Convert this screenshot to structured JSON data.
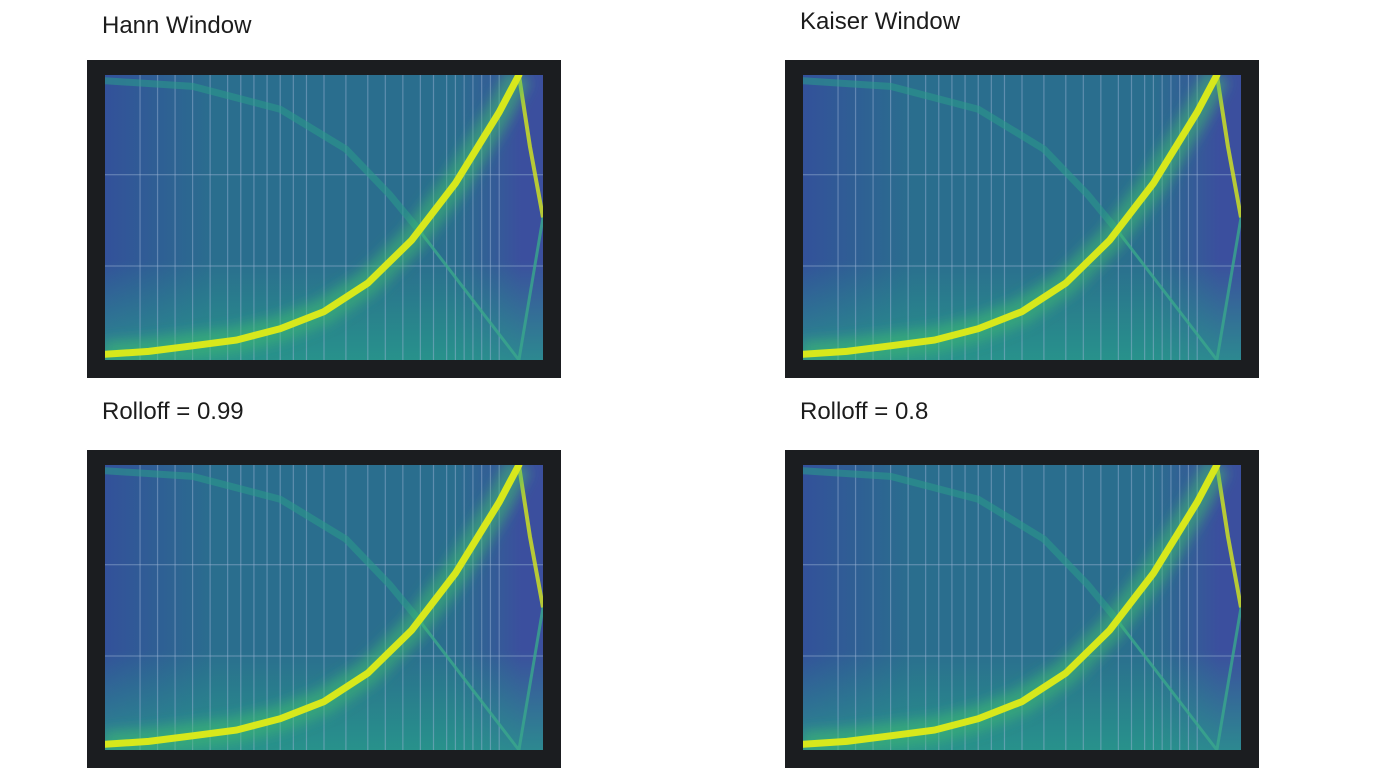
{
  "figure": {
    "panels": [
      {
        "id": "p1",
        "title": "Hann Window"
      },
      {
        "id": "p2",
        "title": "Kaiser Window"
      },
      {
        "id": "p3",
        "title": "Rolloff = 0.99"
      },
      {
        "id": "p4",
        "title": "Rolloff = 0.8"
      }
    ]
  },
  "colors": {
    "frame": "#1b1d20",
    "background": "#2a6e8e",
    "background_left": "#33519a",
    "grid": "#9fb6d6",
    "ridge": "#d7e81c",
    "ridge_glow": "#3fbf6e",
    "sweep_ghost": "#2a9d8a",
    "alias": "#39a88c",
    "right_edge": "#3b4f9e"
  },
  "chart_data": [
    {
      "type": "heatmap",
      "title": "Hann Window",
      "colormap": "viridis",
      "grid": true,
      "xlim": [
        0,
        1
      ],
      "ylim": [
        0,
        1
      ],
      "sweep_curve": {
        "x": [
          0,
          0.1,
          0.2,
          0.3,
          0.4,
          0.5,
          0.6,
          0.7,
          0.8,
          0.9,
          0.945
        ],
        "y": [
          0.02,
          0.03,
          0.05,
          0.07,
          0.11,
          0.17,
          0.27,
          0.42,
          0.62,
          0.87,
          1.0
        ]
      },
      "alias_curve": {
        "x": [
          0.945,
          0.97,
          1.0
        ],
        "y": [
          1.0,
          0.75,
          0.5
        ]
      },
      "ghost_curve": {
        "x": [
          0,
          0.2,
          0.4,
          0.55,
          0.65,
          0.72
        ],
        "y": [
          0.98,
          0.96,
          0.88,
          0.74,
          0.58,
          0.45
        ]
      }
    },
    {
      "type": "heatmap",
      "title": "Kaiser Window",
      "colormap": "viridis",
      "grid": true,
      "xlim": [
        0,
        1
      ],
      "ylim": [
        0,
        1
      ],
      "sweep_curve": {
        "x": [
          0,
          0.1,
          0.2,
          0.3,
          0.4,
          0.5,
          0.6,
          0.7,
          0.8,
          0.9,
          0.945
        ],
        "y": [
          0.02,
          0.03,
          0.05,
          0.07,
          0.11,
          0.17,
          0.27,
          0.42,
          0.62,
          0.87,
          1.0
        ]
      },
      "alias_curve": {
        "x": [
          0.945,
          0.97,
          1.0
        ],
        "y": [
          1.0,
          0.75,
          0.5
        ]
      },
      "ghost_curve": {
        "x": [
          0,
          0.2,
          0.4,
          0.55,
          0.65,
          0.72
        ],
        "y": [
          0.98,
          0.96,
          0.88,
          0.74,
          0.58,
          0.45
        ]
      }
    },
    {
      "type": "heatmap",
      "title": "Rolloff = 0.99",
      "colormap": "viridis",
      "grid": true,
      "xlim": [
        0,
        1
      ],
      "ylim": [
        0,
        1
      ],
      "sweep_curve": {
        "x": [
          0,
          0.1,
          0.2,
          0.3,
          0.4,
          0.5,
          0.6,
          0.7,
          0.8,
          0.9,
          0.945
        ],
        "y": [
          0.02,
          0.03,
          0.05,
          0.07,
          0.11,
          0.17,
          0.27,
          0.42,
          0.62,
          0.87,
          1.0
        ]
      },
      "alias_curve": {
        "x": [
          0.945,
          0.97,
          1.0
        ],
        "y": [
          1.0,
          0.75,
          0.5
        ]
      },
      "ghost_curve": {
        "x": [
          0,
          0.2,
          0.4,
          0.55,
          0.65,
          0.72
        ],
        "y": [
          0.98,
          0.96,
          0.88,
          0.74,
          0.58,
          0.45
        ]
      }
    },
    {
      "type": "heatmap",
      "title": "Rolloff = 0.8",
      "colormap": "viridis",
      "grid": true,
      "xlim": [
        0,
        1
      ],
      "ylim": [
        0,
        1
      ],
      "sweep_curve": {
        "x": [
          0,
          0.1,
          0.2,
          0.3,
          0.4,
          0.5,
          0.6,
          0.7,
          0.8,
          0.9,
          0.945
        ],
        "y": [
          0.02,
          0.03,
          0.05,
          0.07,
          0.11,
          0.17,
          0.27,
          0.42,
          0.62,
          0.87,
          1.0
        ]
      },
      "alias_curve": {
        "x": [
          0.945,
          0.97,
          1.0
        ],
        "y": [
          1.0,
          0.75,
          0.5
        ]
      },
      "ghost_curve": {
        "x": [
          0,
          0.2,
          0.4,
          0.55,
          0.65,
          0.72
        ],
        "y": [
          0.98,
          0.96,
          0.88,
          0.74,
          0.58,
          0.45
        ]
      }
    }
  ]
}
